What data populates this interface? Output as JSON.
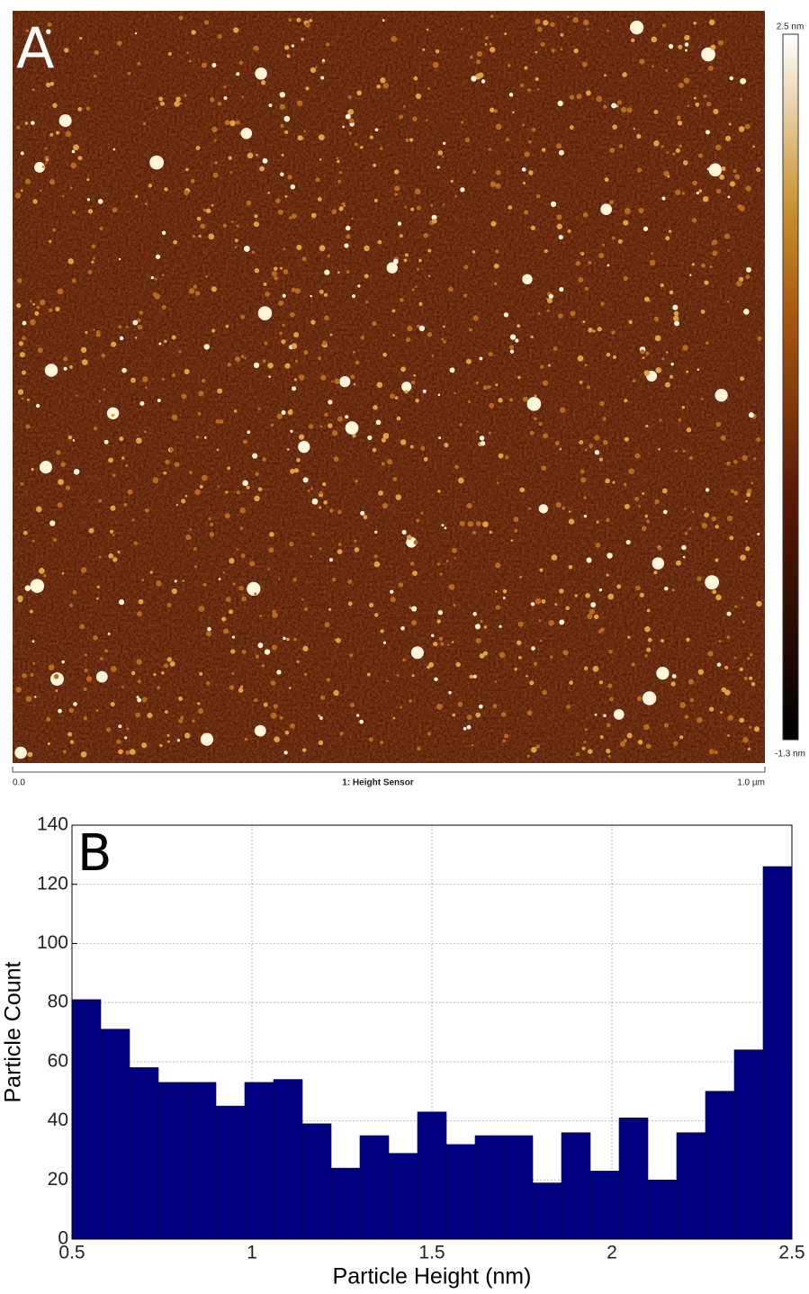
{
  "image": {
    "label": "A",
    "colorbar_max": "2.5 nm",
    "colorbar_min": "-1.3 nm",
    "scale_start": "0.0",
    "channel": "1: Height Sensor",
    "scale_end": "1.0 µm"
  },
  "chart_data": {
    "type": "histogram",
    "label": "B",
    "xlabel": "Particle Height (nm)",
    "ylabel": "Particle Count",
    "color": "#000080",
    "bins": [
      0.5,
      0.58,
      0.66,
      0.74,
      0.82,
      0.9,
      0.98,
      1.06,
      1.14,
      1.22,
      1.3,
      1.38,
      1.46,
      1.54,
      1.62,
      1.7,
      1.78,
      1.86,
      1.94,
      2.02,
      2.1,
      2.18,
      2.26,
      2.34,
      2.42,
      2.5
    ],
    "values": [
      81,
      71,
      58,
      53,
      53,
      45,
      53,
      54,
      39,
      24,
      35,
      29,
      43,
      32,
      35,
      35,
      19,
      36,
      23,
      41,
      20,
      36,
      50,
      64,
      126
    ],
    "xlim": [
      0.5,
      2.5
    ],
    "xticks": [
      0.5,
      1,
      1.5,
      2,
      2.5
    ],
    "ylim": [
      0,
      140
    ],
    "yticks": [
      0,
      20,
      40,
      60,
      80,
      100,
      120,
      140
    ],
    "grid": true
  }
}
